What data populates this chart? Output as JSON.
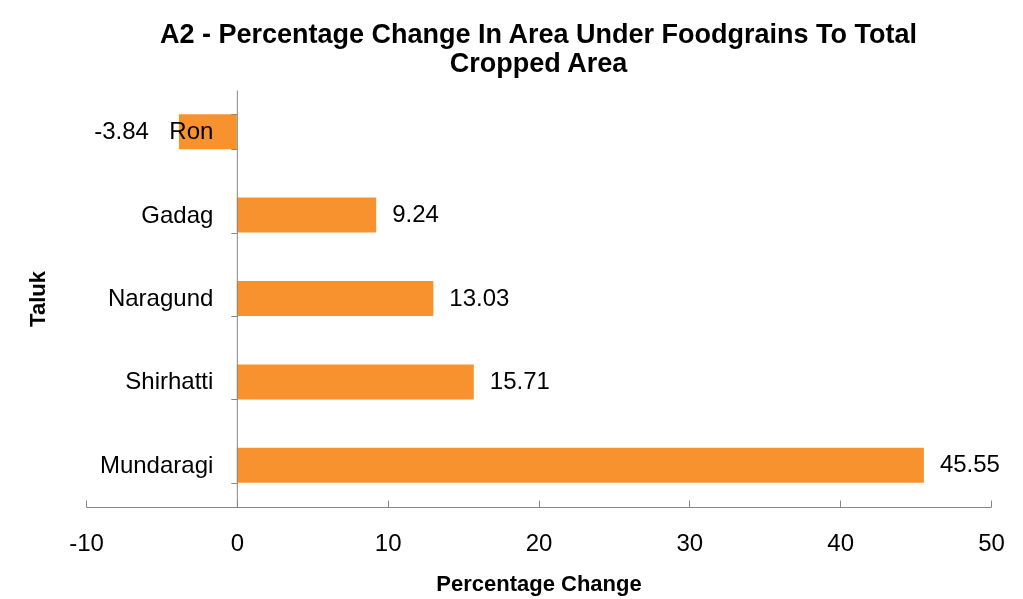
{
  "chart_data": {
    "type": "bar",
    "orientation": "horizontal",
    "title": "A2 - Percentage Change In Area Under Foodgrains To Total Cropped Area",
    "xlabel": "Percentage Change",
    "ylabel": "Taluk",
    "categories": [
      "Ron",
      "Gadag",
      "Naragund",
      "Shirhatti",
      "Mundaragi"
    ],
    "values": [
      -3.84,
      9.24,
      13.03,
      15.71,
      45.55
    ],
    "color": "#f7922e",
    "xlim": [
      -10,
      50
    ],
    "xticks": [
      -10,
      0,
      10,
      20,
      30,
      40,
      50
    ],
    "data_labels": true
  }
}
